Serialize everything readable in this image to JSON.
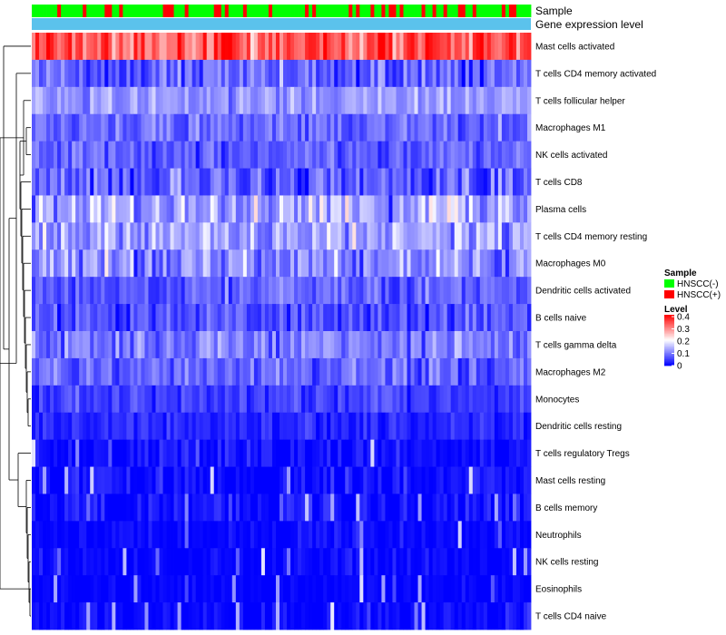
{
  "chart_data": {
    "type": "heatmap",
    "title": "",
    "annotation_tracks": [
      "Sample",
      "Gene expression level"
    ],
    "rows": [
      {
        "name": "Mast cells activated",
        "mean": 0.33,
        "spread": 0.12
      },
      {
        "name": "T cells CD4 memory activated",
        "mean": 0.07,
        "spread": 0.09
      },
      {
        "name": "T cells follicular helper",
        "mean": 0.12,
        "spread": 0.06
      },
      {
        "name": "Macrophages M1",
        "mean": 0.08,
        "spread": 0.06
      },
      {
        "name": "NK cells activated",
        "mean": 0.07,
        "spread": 0.06
      },
      {
        "name": "T cells CD8",
        "mean": 0.07,
        "spread": 0.1
      },
      {
        "name": "Plasma cells",
        "mean": 0.13,
        "spread": 0.11
      },
      {
        "name": "T cells CD4 memory resting",
        "mean": 0.13,
        "spread": 0.09
      },
      {
        "name": "Macrophages M0",
        "mean": 0.11,
        "spread": 0.1
      },
      {
        "name": "Dendritic cells activated",
        "mean": 0.07,
        "spread": 0.06
      },
      {
        "name": "B cells naive",
        "mean": 0.06,
        "spread": 0.07
      },
      {
        "name": "T cells gamma delta",
        "mean": 0.1,
        "spread": 0.08
      },
      {
        "name": "Macrophages M2",
        "mean": 0.08,
        "spread": 0.07
      },
      {
        "name": "Monocytes",
        "mean": 0.05,
        "spread": 0.05
      },
      {
        "name": "Dendritic cells resting",
        "mean": 0.03,
        "spread": 0.04
      },
      {
        "name": "T cells regulatory  Tregs",
        "mean": 0.01,
        "spread": 0.04
      },
      {
        "name": "Mast cells resting",
        "mean": 0.01,
        "spread": 0.05
      },
      {
        "name": "B cells memory",
        "mean": 0.01,
        "spread": 0.05
      },
      {
        "name": "Neutrophils",
        "mean": 0.005,
        "spread": 0.03
      },
      {
        "name": "NK cells resting",
        "mean": 0.005,
        "spread": 0.03
      },
      {
        "name": "Eosinophils",
        "mean": 0.003,
        "spread": 0.02
      },
      {
        "name": "T cells CD4 naive",
        "mean": 0.005,
        "spread": 0.04
      }
    ],
    "n_samples": 137,
    "sample_groups": [
      "HNSCC(-)",
      "HNSCC(+)"
    ],
    "positive_fraction": 0.25,
    "color_scale": {
      "min": 0,
      "max": 0.4,
      "low": "#0000ff",
      "mid": "#ffffff",
      "high": "#ff0000",
      "mid_value": 0.2
    },
    "legend": {
      "position": "right",
      "sample_title": "Sample",
      "sample_entries": [
        {
          "label": "HNSCC(-)",
          "color": "#00ff00"
        },
        {
          "label": "HNSCC(+)",
          "color": "#ff0000"
        }
      ],
      "level_title": "Level",
      "level_ticks": [
        "0.4",
        "0.3",
        "0.2",
        "0.1",
        "0"
      ],
      "gene_expression_color": "#5bc2ec"
    }
  }
}
